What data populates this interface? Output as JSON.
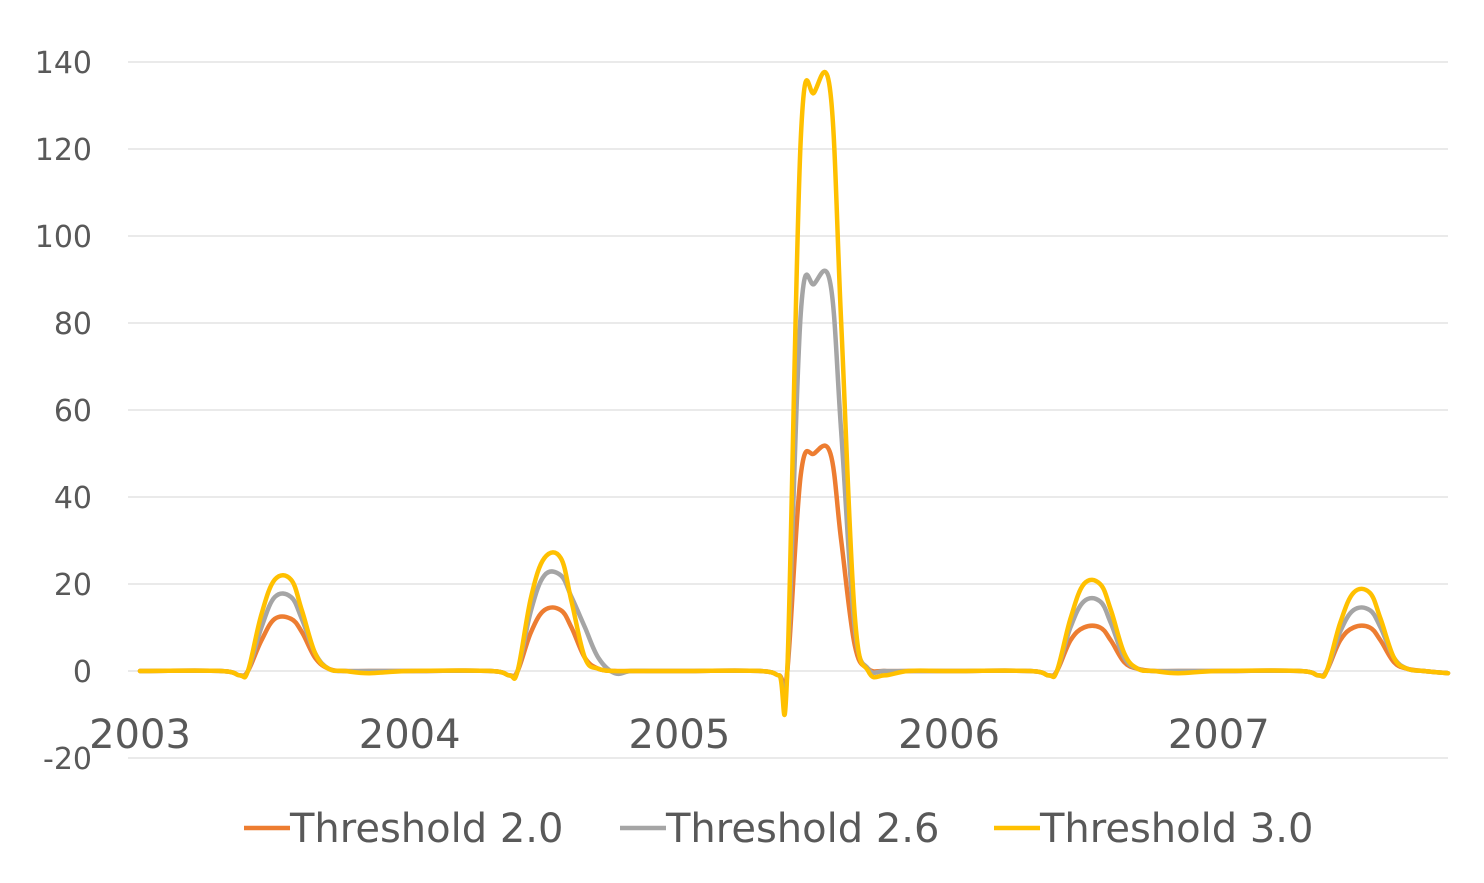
{
  "chart_data": {
    "type": "line",
    "title": "",
    "xlabel": "",
    "ylabel": "",
    "ylim": [
      -20,
      140
    ],
    "yticks": [
      -20,
      0,
      20,
      40,
      60,
      80,
      100,
      120,
      140
    ],
    "xlim": [
      2003.0,
      2007.85
    ],
    "xticks": [
      {
        "value": 2003,
        "label": "2003"
      },
      {
        "value": 2004,
        "label": "2004"
      },
      {
        "value": 2005,
        "label": "2005"
      },
      {
        "value": 2006,
        "label": "2006"
      },
      {
        "value": 2007,
        "label": "2007"
      }
    ],
    "grid": true,
    "legend_position": "bottom",
    "x": [
      2003.0,
      2003.3,
      2003.37,
      2003.4,
      2003.45,
      2003.5,
      2003.56,
      2003.6,
      2003.65,
      2003.7,
      2003.76,
      2003.85,
      2004.0,
      2004.3,
      2004.37,
      2004.4,
      2004.45,
      2004.5,
      2004.56,
      2004.6,
      2004.65,
      2004.7,
      2004.76,
      2004.82,
      2004.9,
      2005.0,
      2005.3,
      2005.37,
      2005.4,
      2005.45,
      2005.5,
      2005.56,
      2005.6,
      2005.65,
      2005.7,
      2005.76,
      2005.85,
      2006.0,
      2006.3,
      2006.37,
      2006.4,
      2006.45,
      2006.5,
      2006.56,
      2006.6,
      2006.65,
      2006.7,
      2006.76,
      2006.85,
      2007.0,
      2007.3,
      2007.37,
      2007.4,
      2007.45,
      2007.5,
      2007.56,
      2007.6,
      2007.65,
      2007.7,
      2007.76,
      2007.85
    ],
    "series": [
      {
        "name": "Threshold 2.0",
        "color": "#ed7d31",
        "values": [
          0,
          0,
          -1,
          0,
          7,
          12,
          12,
          9,
          3,
          0.5,
          0,
          0,
          0,
          0,
          -1,
          0,
          9,
          14,
          14,
          10,
          3,
          0.5,
          0,
          0,
          0,
          0,
          0,
          -1,
          0,
          45,
          50,
          50,
          30,
          6,
          0.5,
          0,
          0,
          0,
          0,
          -1,
          0,
          7,
          10,
          10,
          7,
          2,
          0.5,
          0,
          0,
          0,
          0,
          -1,
          0,
          7,
          10,
          10,
          7,
          2,
          0.5,
          0,
          -0.5
        ]
      },
      {
        "name": "Threshold 2.6",
        "color": "#a5a5a5",
        "values": [
          0,
          0,
          -1,
          0,
          10,
          17,
          17,
          12,
          4,
          0.5,
          0,
          0,
          0,
          0,
          -1,
          0,
          14,
          22,
          22,
          17,
          10,
          3,
          -0.5,
          0,
          0,
          0,
          0,
          -1,
          0,
          82,
          89,
          89,
          55,
          10,
          0.5,
          0,
          0,
          0,
          0,
          -1,
          0,
          10,
          16,
          16,
          11,
          3,
          0.5,
          0,
          0,
          0,
          0,
          -1,
          0,
          9,
          14,
          14,
          10,
          3,
          0.5,
          0,
          -0.5
        ]
      },
      {
        "name": "Threshold 3.0",
        "color": "#ffc000",
        "values": [
          0,
          0,
          -1,
          0,
          13,
          21,
          21,
          14,
          4,
          0.5,
          0,
          -0.5,
          0,
          0,
          -1,
          0,
          17,
          26,
          26,
          16,
          3,
          0.5,
          0,
          0,
          0,
          0,
          0,
          -1,
          0,
          122,
          133,
          133,
          80,
          13,
          0,
          -1,
          0,
          0,
          0,
          -1,
          0,
          12,
          20,
          20,
          14,
          4,
          0.5,
          0,
          -0.5,
          0,
          0,
          -1,
          0,
          11,
          18,
          18,
          12,
          3,
          0.5,
          0,
          -0.5
        ]
      }
    ]
  }
}
